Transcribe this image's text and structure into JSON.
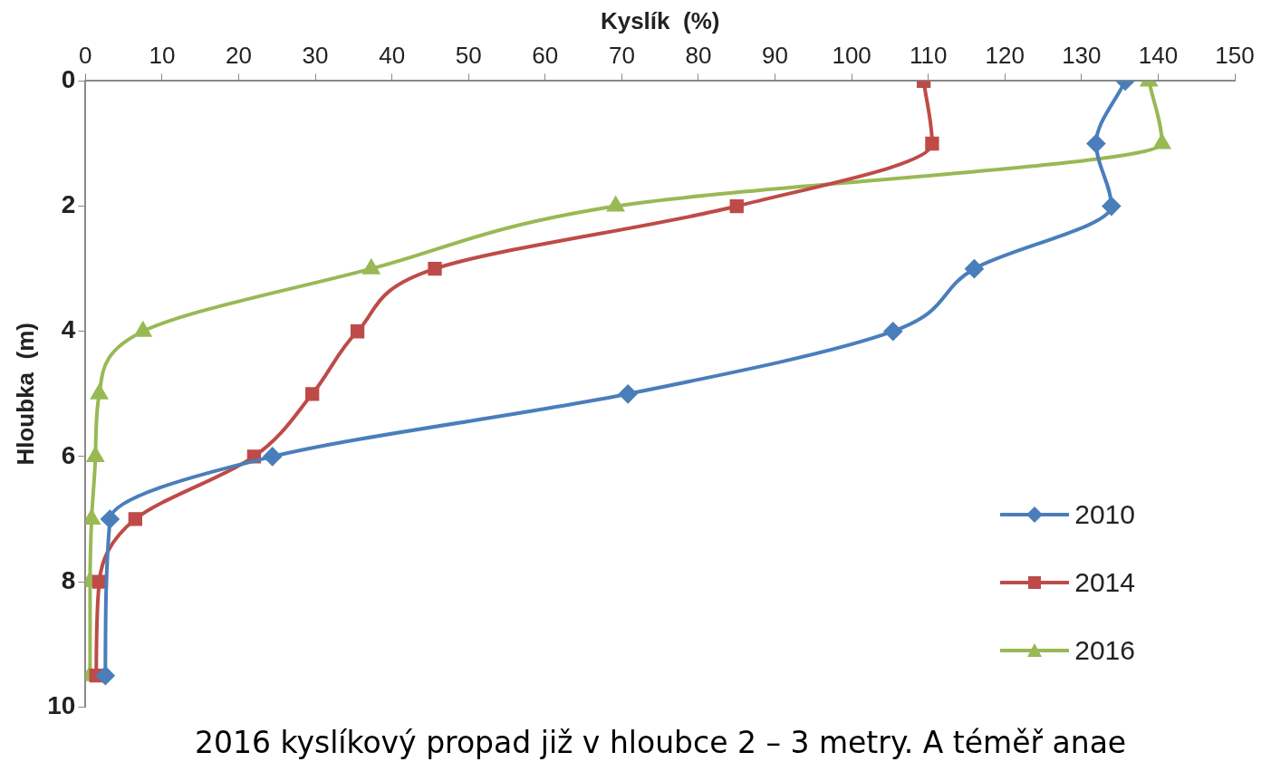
{
  "chart_data": {
    "type": "line",
    "xlabel": "Kyslík  (%)",
    "ylabel": "Hloubka  (m)",
    "xlim": [
      0,
      150
    ],
    "xticks": [
      0,
      10,
      20,
      30,
      40,
      50,
      60,
      70,
      80,
      90,
      100,
      110,
      120,
      130,
      140,
      150
    ],
    "ylim": [
      10,
      0
    ],
    "yticks": [
      0,
      2,
      4,
      6,
      8,
      10
    ],
    "grid": false,
    "legend": "bottom right",
    "line_style": "solid",
    "series": [
      {
        "name": "2010",
        "color": "#4a7ebb",
        "marker": "diamond",
        "x": [
          135.7,
          131.9,
          133.9,
          116,
          105.4,
          70.8,
          24.4,
          3.2,
          2.6
        ],
        "values": [
          0,
          1,
          2,
          3,
          4,
          5,
          6,
          7,
          9.5
        ]
      },
      {
        "name": "2014",
        "color": "#be4b48",
        "marker": "square",
        "x": [
          109.4,
          110.5,
          85,
          45.6,
          35.5,
          29.6,
          22,
          6.5,
          1.8,
          1.4
        ],
        "values": [
          0,
          1,
          2,
          3,
          4,
          5,
          6,
          7,
          8,
          9.5
        ]
      },
      {
        "name": "2016",
        "color": "#98b954",
        "marker": "triangle",
        "x": [
          138.8,
          140.5,
          69.2,
          37.3,
          7.5,
          1.8,
          1.3,
          0.8,
          0.6,
          0.6
        ],
        "values": [
          0,
          1,
          2,
          3,
          4,
          5,
          6,
          7,
          8,
          9.5
        ]
      }
    ],
    "annotations": [
      "2016 kyslíkový propad již v hloubce 2 – 3 metry. A téměř anae"
    ]
  }
}
